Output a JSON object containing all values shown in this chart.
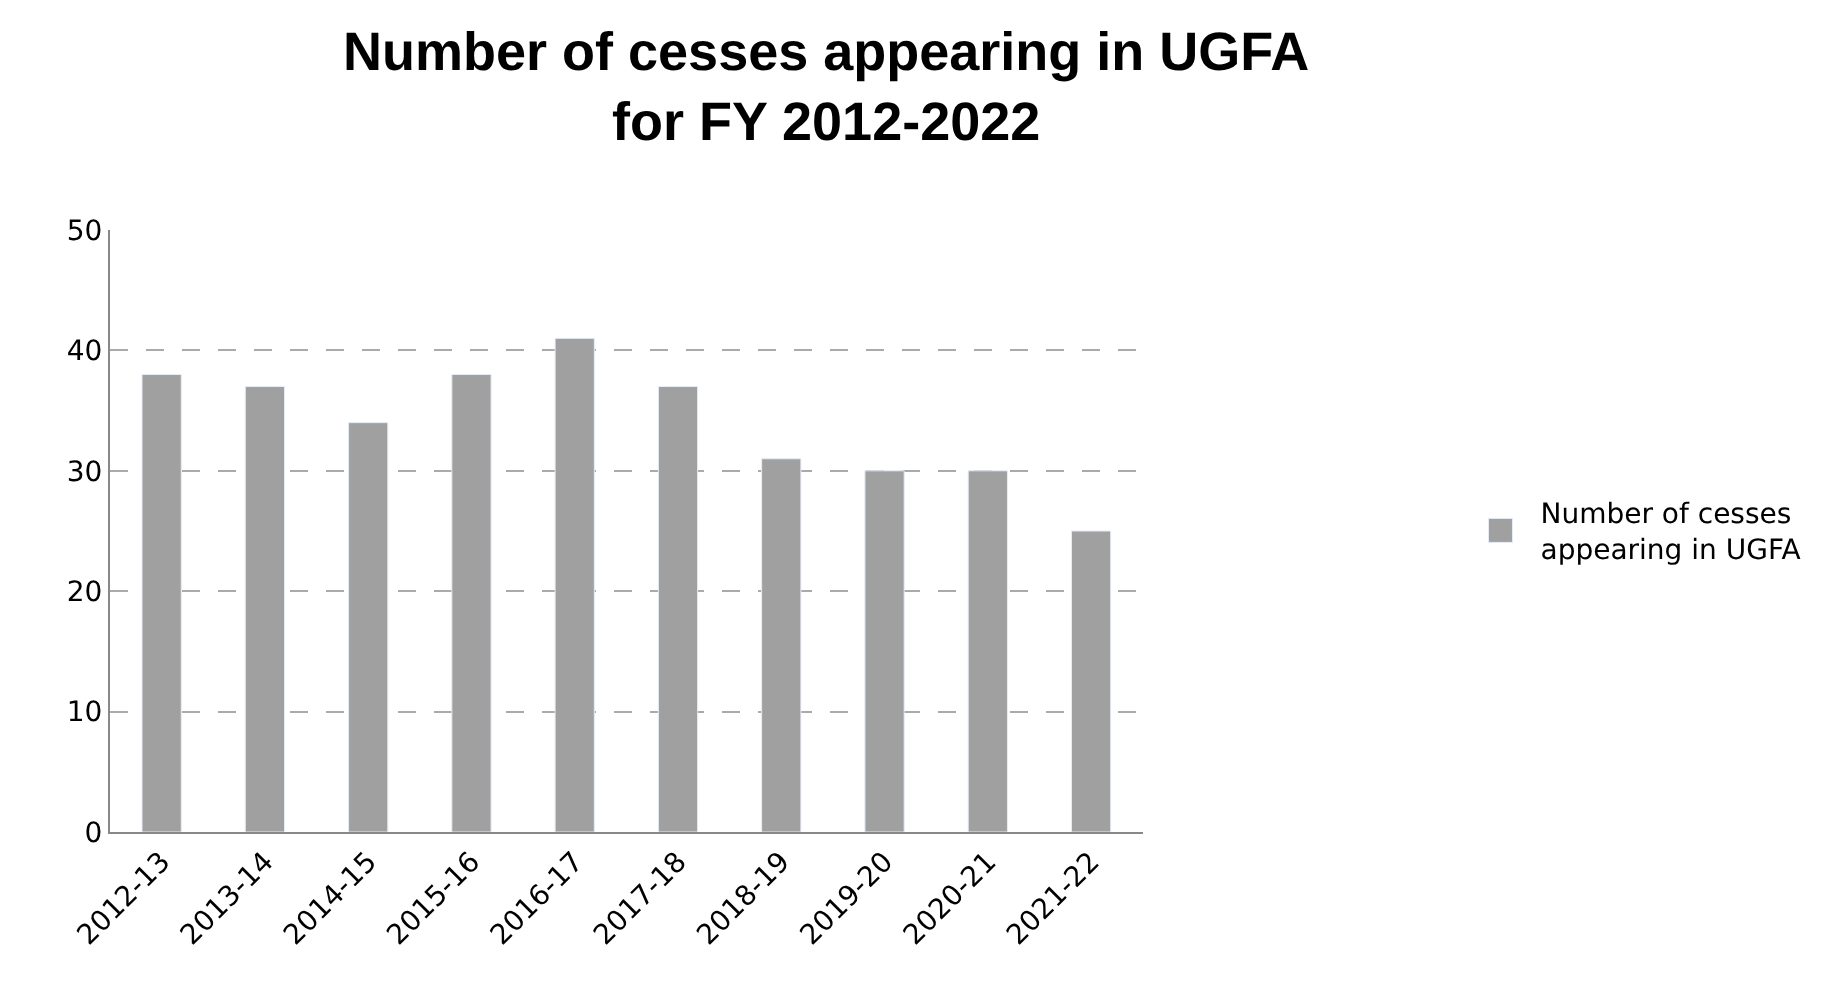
{
  "chart_data": {
    "type": "bar",
    "title": "Number of cesses appearing in UGFA\nfor FY 2012-2022",
    "categories": [
      "2012-13",
      "2013-14",
      "2014-15",
      "2015-16",
      "2016-17",
      "2017-18",
      "2018-19",
      "2019-20",
      "2020-21",
      "2021-22"
    ],
    "series": [
      {
        "name": "Number of cesses\nappearing in UGFA",
        "color": "#a0a0a0",
        "values": [
          38,
          37,
          34,
          38,
          41,
          37,
          31,
          30,
          30,
          25
        ]
      }
    ],
    "ylim": [
      0,
      50
    ],
    "yticks": [
      0,
      10,
      20,
      30,
      40,
      50
    ],
    "grid": "y",
    "legend": "right"
  }
}
